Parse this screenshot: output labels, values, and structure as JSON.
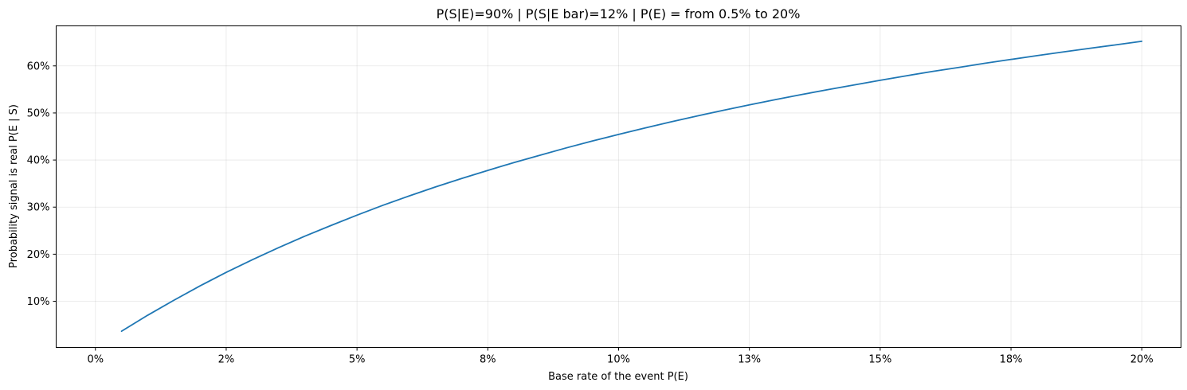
{
  "chart_data": {
    "type": "line",
    "title": "P(S|E)=90% | P(S|E bar)=12% | P(E) = from 0.5% to 20%",
    "xlabel": "Base rate of the event  P(E)",
    "ylabel": "Probability signal is real  P(E | S)",
    "xlim": [
      -0.0075,
      0.2075
    ],
    "ylim": [
      0.002,
      0.685
    ],
    "x_ticks": [
      0.0,
      0.025,
      0.05,
      0.075,
      0.1,
      0.125,
      0.15,
      0.175,
      0.2
    ],
    "x_tick_labels": [
      "0%",
      "2%",
      "5%",
      "8%",
      "10%",
      "13%",
      "15%",
      "18%",
      "20%"
    ],
    "y_ticks": [
      0.1,
      0.2,
      0.3,
      0.4,
      0.5,
      0.6
    ],
    "y_tick_labels": [
      "10%",
      "20%",
      "30%",
      "40%",
      "50%",
      "60%"
    ],
    "grid": true,
    "series": [
      {
        "color": "#1f77b4",
        "x": [
          0.005,
          0.01,
          0.015,
          0.02,
          0.025,
          0.03,
          0.035,
          0.04,
          0.045,
          0.05,
          0.055,
          0.06,
          0.065,
          0.07,
          0.075,
          0.08,
          0.085,
          0.09,
          0.095,
          0.1,
          0.105,
          0.11,
          0.115,
          0.12,
          0.125,
          0.13,
          0.135,
          0.14,
          0.145,
          0.15,
          0.155,
          0.16,
          0.165,
          0.17,
          0.175,
          0.18,
          0.185,
          0.19,
          0.195,
          0.2
        ],
        "y": [
          0.0364,
          0.0704,
          0.1022,
          0.1327,
          0.1614,
          0.1883,
          0.2139,
          0.2381,
          0.2609,
          0.283,
          0.3041,
          0.3238,
          0.3428,
          0.3609,
          0.378,
          0.3947,
          0.4103,
          0.4258,
          0.4404,
          0.4545,
          0.468,
          0.4811,
          0.4936,
          0.5056,
          0.5172,
          0.5284,
          0.5391,
          0.5496,
          0.5595,
          0.5694,
          0.579,
          0.5882,
          0.5967,
          0.6055,
          0.6137,
          0.6218,
          0.6297,
          0.6373,
          0.6446,
          0.6522
        ]
      }
    ]
  }
}
